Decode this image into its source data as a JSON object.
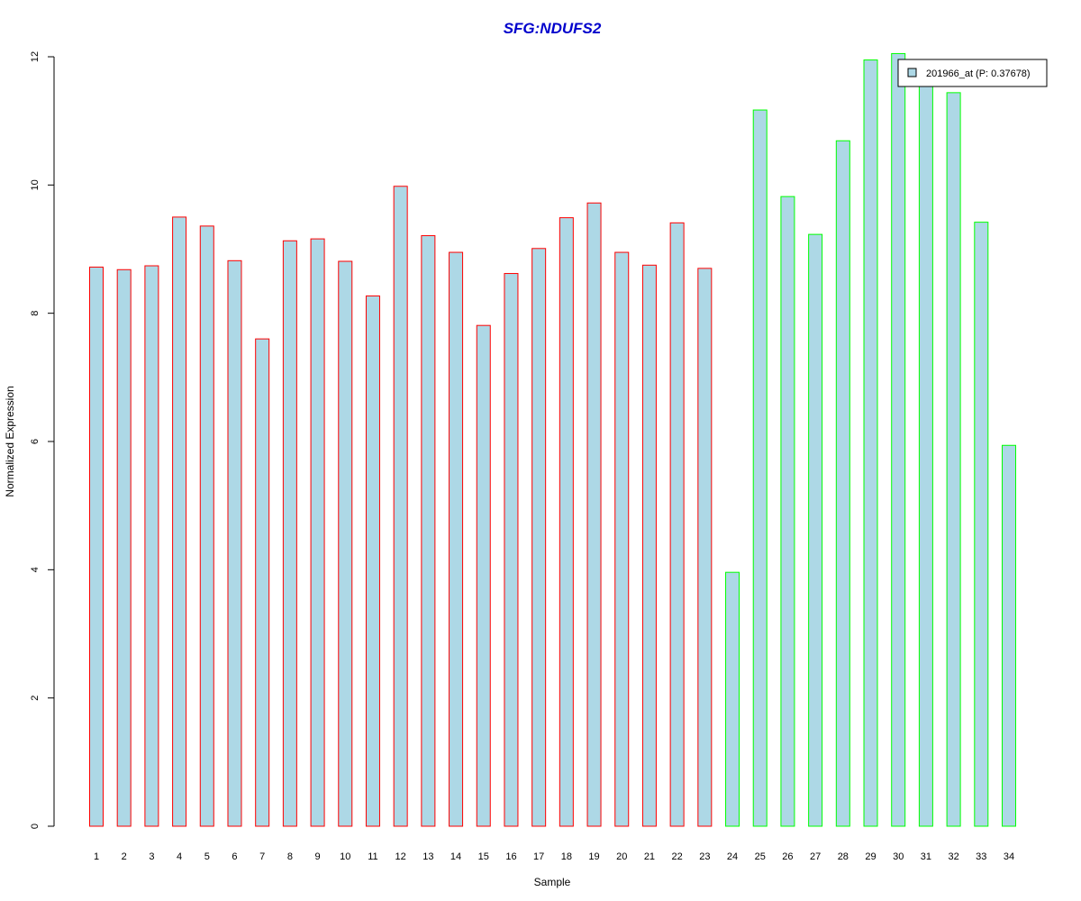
{
  "chart_data": {
    "type": "bar",
    "title": "SFG:NDUFS2",
    "xlabel": "Sample",
    "ylabel": "Normalized Expression",
    "ylim": [
      0,
      12
    ],
    "yticks": [
      0,
      2,
      4,
      6,
      8,
      10,
      12
    ],
    "grid": false,
    "legend": {
      "placement": "top-right",
      "label": "201966_at (P: 0.37678)",
      "swatch_color": "#add8e6"
    },
    "categories": [
      "1",
      "2",
      "3",
      "4",
      "5",
      "6",
      "7",
      "8",
      "9",
      "10",
      "11",
      "12",
      "13",
      "14",
      "15",
      "16",
      "17",
      "18",
      "19",
      "20",
      "21",
      "22",
      "23",
      "24",
      "25",
      "26",
      "27",
      "28",
      "29",
      "30",
      "31",
      "32",
      "33",
      "34"
    ],
    "values": [
      8.72,
      8.68,
      8.74,
      9.5,
      9.36,
      8.82,
      7.6,
      9.13,
      9.16,
      8.81,
      8.27,
      9.98,
      9.21,
      8.95,
      7.81,
      8.62,
      9.01,
      9.49,
      9.72,
      8.95,
      8.75,
      9.41,
      8.7,
      3.96,
      11.17,
      9.82,
      9.23,
      10.69,
      11.95,
      12.05,
      11.64,
      11.44,
      9.42,
      5.94
    ],
    "groups": [
      {
        "samples": "1-23",
        "border_color": "#ff0000"
      },
      {
        "samples": "24-34",
        "border_color": "#00ff00"
      }
    ],
    "bar_fill": "#add8e6",
    "title_color": "#0000cc"
  }
}
